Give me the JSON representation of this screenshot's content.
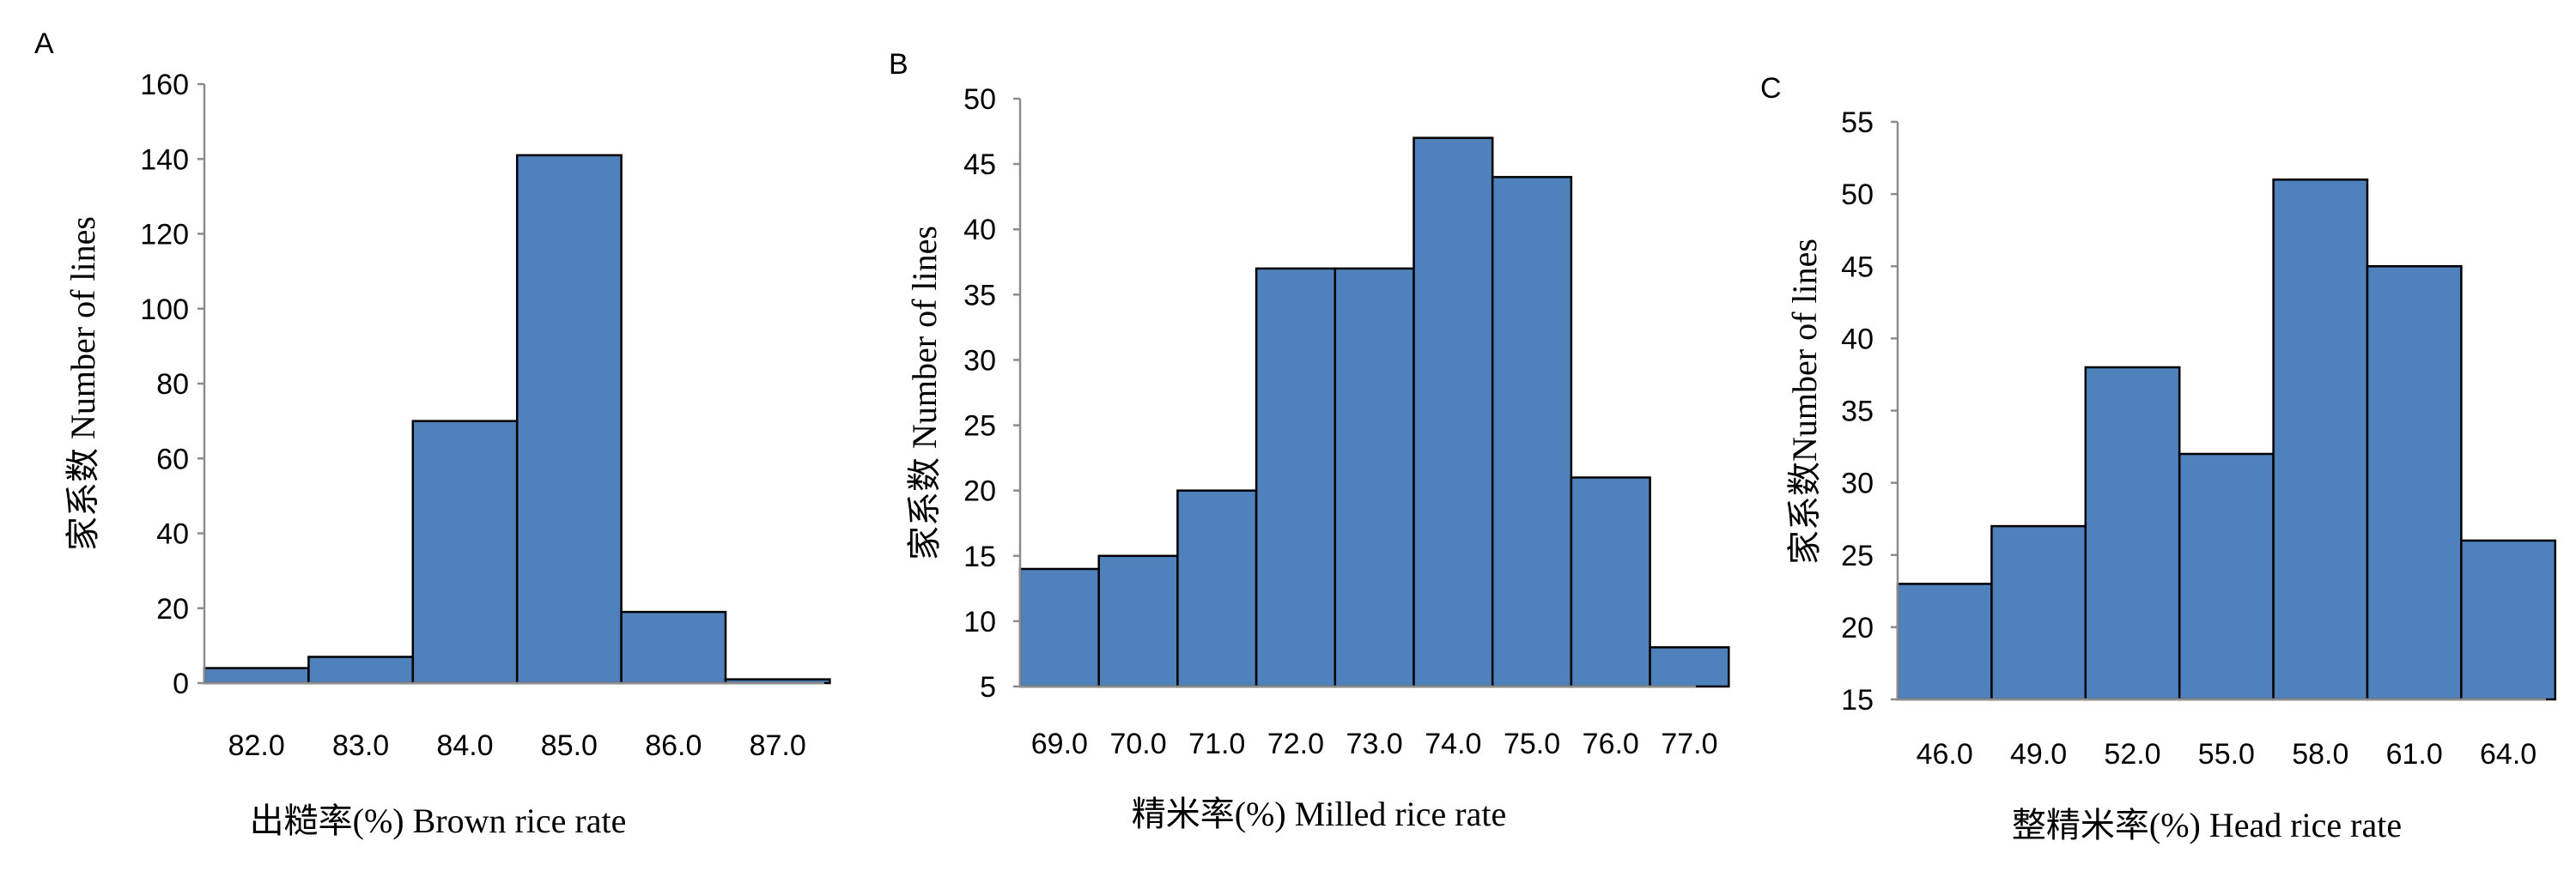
{
  "chart_data": [
    {
      "type": "bar",
      "panel_label": "A",
      "categories": [
        "82.0",
        "83.0",
        "84.0",
        "85.0",
        "86.0",
        "87.0"
      ],
      "values": [
        4,
        7,
        70,
        141,
        19,
        1
      ],
      "xlabel": "出糙率(%) Brown rice rate",
      "ylabel": "家系数 Number of lines",
      "ylim": [
        0,
        160
      ],
      "yticks": [
        "0",
        "20",
        "40",
        "60",
        "80",
        "100",
        "120",
        "140",
        "160"
      ],
      "grid": false,
      "bar_color": "#4f81bd"
    },
    {
      "type": "bar",
      "panel_label": "B",
      "categories": [
        "69.0",
        "70.0",
        "71.0",
        "72.0",
        "73.0",
        "74.0",
        "75.0",
        "76.0",
        "77.0"
      ],
      "values": [
        14,
        15,
        20,
        37,
        37,
        47,
        44,
        21,
        8
      ],
      "xlabel": "精米率(%) Milled rice rate",
      "ylabel": "家系数 Number of lines",
      "ylim": [
        5,
        50
      ],
      "yticks": [
        "5",
        "10",
        "15",
        "20",
        "25",
        "30",
        "35",
        "40",
        "45",
        "50"
      ],
      "grid": false,
      "bar_color": "#4f81bd"
    },
    {
      "type": "bar",
      "panel_label": "C",
      "categories": [
        "46.0",
        "49.0",
        "52.0",
        "55.0",
        "58.0",
        "61.0",
        "64.0"
      ],
      "values": [
        23,
        27,
        38,
        32,
        51,
        45,
        26
      ],
      "xlabel": "整精米率(%) Head rice rate",
      "ylabel": "家系数Number of lines",
      "ylim": [
        15,
        55
      ],
      "yticks": [
        "15",
        "20",
        "25",
        "30",
        "35",
        "40",
        "45",
        "50",
        "55"
      ],
      "grid": false,
      "bar_color": "#4f81bd"
    }
  ]
}
